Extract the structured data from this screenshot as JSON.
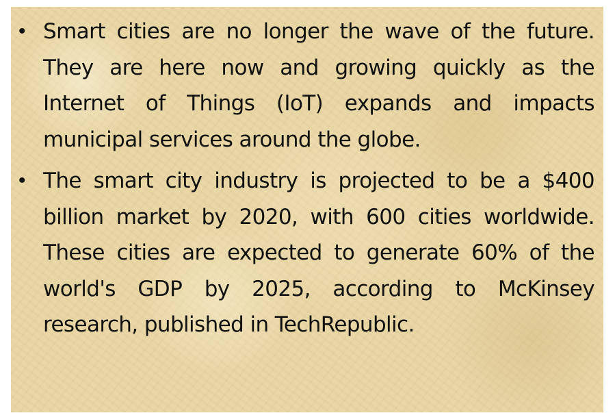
{
  "slide": {
    "bullets": [
      {
        "marker": "•",
        "text": "Smart cities are no longer the wave of the future. They are here now and growing quickly as the Internet of Things (IoT) expands and impacts municipal services around the globe."
      },
      {
        "marker": "•",
        "text": "The smart city industry is projected to be a $400 billion market by 2020, with 600 cities worldwide. These cities are expected to generate 60% of the world's GDP by 2025, according to McKinsey research, published in TechRepublic."
      }
    ]
  }
}
